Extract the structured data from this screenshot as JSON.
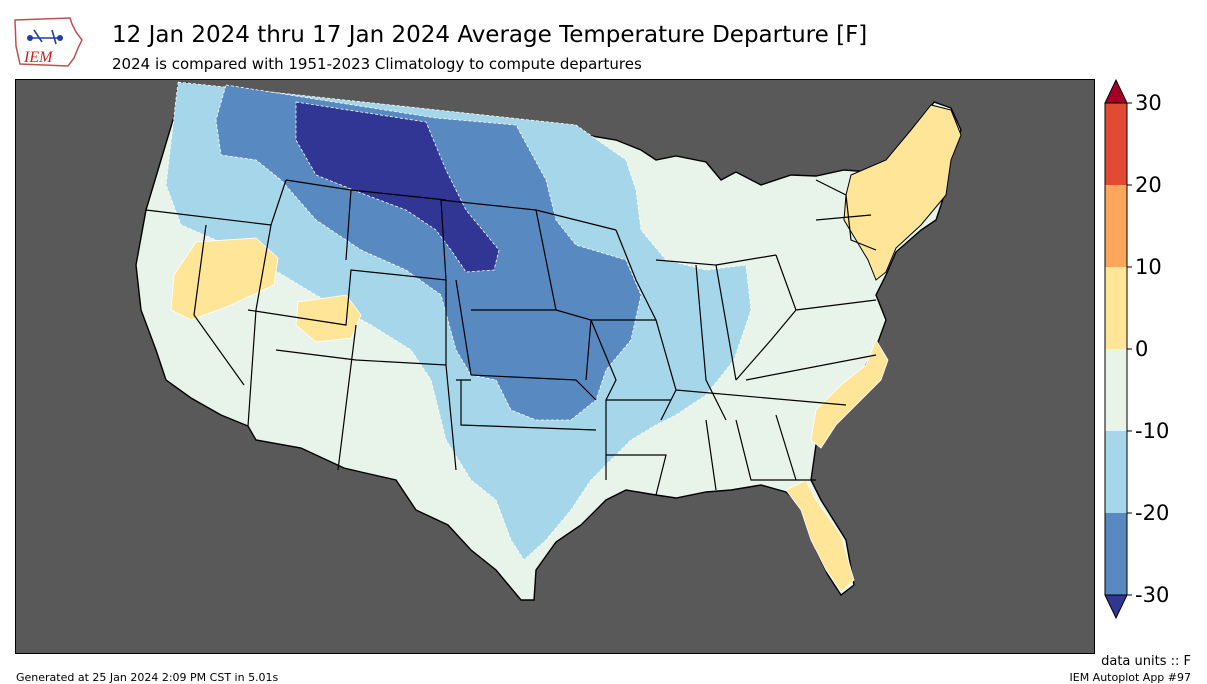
{
  "header": {
    "title": "12 Jan 2024 thru 17 Jan 2024 Average Temperature Departure [F]",
    "subtitle": "2024 is compared with 1951-2023 Climatology to compute departures"
  },
  "logo": {
    "text": "IEM"
  },
  "colorbar": {
    "ticks": [
      "30",
      "20",
      "10",
      "0",
      "-10",
      "-20",
      "-30"
    ],
    "bins": [
      {
        "range": "20 to 30",
        "color": "#e34a33"
      },
      {
        "range": "10 to 20",
        "color": "#fca55c"
      },
      {
        "range": "0 to 10",
        "color": "#fee597"
      },
      {
        "range": "-10 to 0",
        "color": "#e8f4e9"
      },
      {
        "range": "-20 to -10",
        "color": "#a6d6e9"
      },
      {
        "range": "-30 to -20",
        "color": "#5989c1"
      }
    ],
    "over_color": "#a50026",
    "under_color": "#313695"
  },
  "map": {
    "background_color": "#595959",
    "region": "Contiguous United States"
  },
  "footer": {
    "generated": "Generated at 25 Jan 2024 2:09 PM CST in 5.01s",
    "units": "data units :: F",
    "app": "IEM Autoplot App #97"
  }
}
